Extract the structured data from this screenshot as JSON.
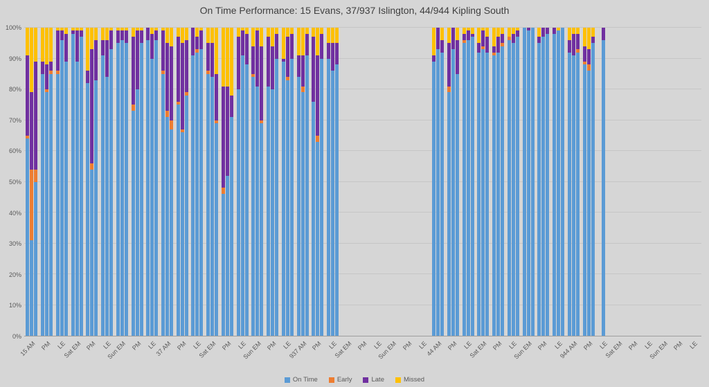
{
  "title": "On Time Performance: 15 Evans, 37/937 Islington, 44/944 Kipling South",
  "colors": {
    "background": "#d6d6d6",
    "gridline": "#c6c6c6",
    "axis_line": "#9e9e9e",
    "axis_text": "#595959",
    "title_text": "#3f3f3f",
    "on_time": "#5B9BD5",
    "early": "#ED7D31",
    "late": "#7030A0",
    "missed": "#FFC000"
  },
  "legend": [
    {
      "label": "On Time",
      "color_key": "on_time"
    },
    {
      "label": "Early",
      "color_key": "early"
    },
    {
      "label": "Late",
      "color_key": "late"
    },
    {
      "label": "Missed",
      "color_key": "missed"
    }
  ],
  "y_axis": {
    "ticks": [
      "0%",
      "10%",
      "20%",
      "30%",
      "40%",
      "50%",
      "60%",
      "70%",
      "80%",
      "90%",
      "100%"
    ],
    "min": 0,
    "max": 100
  },
  "chart_data": {
    "type": "bar",
    "stacked": true,
    "unit": "percent",
    "grid": true,
    "legend_position": "bottom",
    "ylim": [
      0,
      100
    ],
    "title": "On Time Performance: 15 Evans, 37/937 Islington, 44/944 Kipling South",
    "series_keys": [
      "on_time",
      "early",
      "late",
      "missed"
    ],
    "series_labels": [
      "On Time",
      "Early",
      "Late",
      "Missed"
    ],
    "note": "Each category shows up to 3 stacked 100% bars [on_time, early, late, missed]; empty arrays = no data plotted",
    "categories": [
      {
        "label": "15 AM",
        "bars": [
          [
            64,
            1,
            26,
            9
          ],
          [
            31,
            23,
            25,
            21
          ],
          [
            50,
            4,
            35,
            11
          ]
        ]
      },
      {
        "label": "PM",
        "bars": [
          [
            85,
            0,
            4,
            11
          ],
          [
            79,
            1,
            8,
            12
          ],
          [
            85,
            1,
            3,
            11
          ]
        ]
      },
      {
        "label": "LE",
        "bars": [
          [
            85,
            1,
            13,
            1
          ],
          [
            96,
            0,
            3,
            1
          ],
          [
            89,
            0,
            9,
            2
          ]
        ]
      },
      {
        "label": "Sat EM",
        "bars": [
          [
            98,
            0,
            1,
            1
          ],
          [
            89,
            0,
            10,
            1
          ],
          [
            97,
            0,
            2,
            1
          ]
        ]
      },
      {
        "label": "PM",
        "bars": [
          [
            82,
            0,
            4,
            14
          ],
          [
            54,
            2,
            37,
            7
          ],
          [
            83,
            0,
            13,
            4
          ]
        ]
      },
      {
        "label": "LE",
        "bars": [
          [
            91,
            0,
            5,
            4
          ],
          [
            84,
            0,
            12,
            4
          ],
          [
            93,
            0,
            6,
            1
          ]
        ]
      },
      {
        "label": "Sun EM",
        "bars": [
          [
            95,
            0,
            4,
            1
          ],
          [
            96,
            0,
            3,
            1
          ],
          [
            95,
            0,
            4,
            1
          ]
        ]
      },
      {
        "label": "PM",
        "bars": [
          [
            73,
            2,
            22,
            3
          ],
          [
            80,
            0,
            19,
            1
          ],
          [
            95,
            0,
            4,
            1
          ]
        ]
      },
      {
        "label": "LE",
        "bars": [
          [
            96,
            0,
            4,
            0
          ],
          [
            90,
            0,
            8,
            2
          ],
          [
            96,
            0,
            3,
            1
          ]
        ]
      },
      {
        "label": "37 AM",
        "bars": [
          [
            85,
            1,
            13,
            1
          ],
          [
            71,
            2,
            22,
            5
          ],
          [
            67,
            3,
            24,
            6
          ]
        ]
      },
      {
        "label": "PM",
        "bars": [
          [
            75,
            1,
            21,
            3
          ],
          [
            66,
            1,
            28,
            5
          ],
          [
            78,
            1,
            17,
            4
          ]
        ]
      },
      {
        "label": "LE",
        "bars": [
          [
            91,
            0,
            9,
            0
          ],
          [
            92,
            1,
            4,
            3
          ],
          [
            93,
            0,
            6,
            1
          ]
        ]
      },
      {
        "label": "Sat EM",
        "bars": [
          [
            85,
            1,
            9,
            5
          ],
          [
            84,
            0,
            11,
            5
          ],
          [
            69,
            1,
            15,
            15
          ]
        ]
      },
      {
        "label": "PM",
        "bars": [
          [
            46,
            2,
            33,
            19
          ],
          [
            52,
            0,
            29,
            19
          ],
          [
            71,
            0,
            7,
            22
          ]
        ]
      },
      {
        "label": "LE",
        "bars": [
          [
            80,
            0,
            17,
            3
          ],
          [
            91,
            0,
            8,
            1
          ],
          [
            88,
            0,
            10,
            2
          ]
        ]
      },
      {
        "label": "Sun EM",
        "bars": [
          [
            84,
            1,
            9,
            6
          ],
          [
            81,
            0,
            18,
            1
          ],
          [
            69,
            1,
            24,
            6
          ]
        ]
      },
      {
        "label": "PM",
        "bars": [
          [
            81,
            0,
            16,
            3
          ],
          [
            80,
            0,
            14,
            6
          ],
          [
            90,
            0,
            8,
            2
          ]
        ]
      },
      {
        "label": "LE",
        "bars": [
          [
            89,
            0,
            1,
            10
          ],
          [
            83,
            1,
            13,
            3
          ],
          [
            90,
            0,
            8,
            2
          ]
        ]
      },
      {
        "label": "937 AM",
        "bars": [
          [
            84,
            0,
            7,
            9
          ],
          [
            79,
            2,
            10,
            9
          ],
          [
            91,
            0,
            7,
            2
          ]
        ]
      },
      {
        "label": "PM",
        "bars": [
          [
            76,
            0,
            21,
            3
          ],
          [
            63,
            2,
            26,
            9
          ],
          [
            90,
            0,
            8,
            2
          ]
        ]
      },
      {
        "label": "LE",
        "bars": [
          [
            90,
            0,
            5,
            5
          ],
          [
            86,
            0,
            9,
            5
          ],
          [
            88,
            0,
            7,
            5
          ]
        ]
      },
      {
        "label": "Sat EM",
        "bars": []
      },
      {
        "label": "PM",
        "bars": []
      },
      {
        "label": "LE",
        "bars": []
      },
      {
        "label": "Sun EM",
        "bars": []
      },
      {
        "label": "PM",
        "bars": []
      },
      {
        "label": "LE",
        "bars": []
      },
      {
        "label": "44 AM",
        "bars": [
          [
            89,
            0,
            2,
            9
          ],
          [
            93,
            0,
            7,
            0
          ],
          [
            92,
            0,
            4,
            4
          ]
        ]
      },
      {
        "label": "PM",
        "bars": [
          [
            79,
            2,
            14,
            5
          ],
          [
            93,
            0,
            7,
            0
          ],
          [
            85,
            0,
            11,
            4
          ]
        ]
      },
      {
        "label": "LE",
        "bars": [
          [
            95,
            1,
            2,
            2
          ],
          [
            96,
            0,
            3,
            1
          ],
          [
            97,
            0,
            1,
            2
          ]
        ]
      },
      {
        "label": "Sat EM",
        "bars": [
          [
            92,
            0,
            3,
            5
          ],
          [
            93,
            1,
            5,
            1
          ],
          [
            92,
            0,
            5,
            3
          ]
        ]
      },
      {
        "label": "PM",
        "bars": [
          [
            91,
            1,
            2,
            6
          ],
          [
            92,
            0,
            5,
            3
          ],
          [
            94,
            1,
            3,
            2
          ]
        ]
      },
      {
        "label": "LE",
        "bars": [
          [
            96,
            1,
            0,
            3
          ],
          [
            95,
            0,
            3,
            2
          ],
          [
            97,
            0,
            2,
            1
          ]
        ]
      },
      {
        "label": "Sun EM",
        "bars": [
          [
            100,
            0,
            0,
            0
          ],
          [
            99,
            0,
            1,
            0
          ],
          [
            100,
            0,
            0,
            0
          ]
        ]
      },
      {
        "label": "PM",
        "bars": [
          [
            95,
            0,
            2,
            3
          ],
          [
            97,
            0,
            3,
            0
          ],
          [
            98,
            0,
            2,
            0
          ]
        ]
      },
      {
        "label": "LE",
        "bars": [
          [
            98,
            0,
            2,
            0
          ],
          [
            99,
            0,
            0,
            1
          ],
          [
            100,
            0,
            0,
            0
          ]
        ]
      },
      {
        "label": "944 AM",
        "bars": [
          [
            92,
            0,
            4,
            4
          ],
          [
            91,
            0,
            7,
            2
          ],
          [
            92,
            1,
            5,
            2
          ]
        ]
      },
      {
        "label": "PM",
        "bars": [
          [
            88,
            1,
            5,
            6
          ],
          [
            86,
            2,
            5,
            7
          ],
          [
            95,
            0,
            2,
            3
          ]
        ]
      },
      {
        "label": "LE",
        "bars": [
          [
            96,
            0,
            4,
            0
          ]
        ]
      },
      {
        "label": "Sat EM",
        "bars": []
      },
      {
        "label": "PM",
        "bars": []
      },
      {
        "label": "LE",
        "bars": []
      },
      {
        "label": "Sun EM",
        "bars": []
      },
      {
        "label": "PM",
        "bars": []
      },
      {
        "label": "LE",
        "bars": []
      }
    ]
  }
}
